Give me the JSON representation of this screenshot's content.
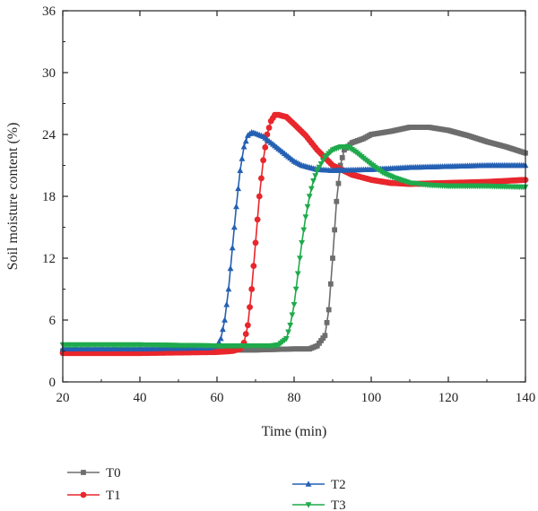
{
  "chart_data": {
    "type": "line",
    "title": "",
    "xlabel": "Time (min)",
    "ylabel": "Soil moisture content (%)",
    "xlim": [
      20,
      140
    ],
    "ylim": [
      0,
      36
    ],
    "xticks": [
      20,
      40,
      60,
      80,
      100,
      120,
      140
    ],
    "yticks": [
      0,
      6,
      12,
      18,
      24,
      30,
      36
    ],
    "grid": false,
    "legend_position": "bottom",
    "series": [
      {
        "name": "T0",
        "color": "#6d6d6d",
        "marker": "square",
        "x": [
          20,
          40,
          60,
          70,
          80,
          84,
          86,
          88,
          89,
          90,
          91,
          92,
          93,
          95,
          98,
          100,
          105,
          110,
          115,
          120,
          125,
          130,
          135,
          140
        ],
        "y": [
          3.0,
          3.0,
          3.1,
          3.1,
          3.2,
          3.2,
          3.5,
          4.5,
          7.0,
          12.0,
          17.5,
          21.0,
          22.5,
          23.2,
          23.6,
          24.0,
          24.3,
          24.7,
          24.7,
          24.4,
          23.9,
          23.3,
          22.8,
          22.2
        ]
      },
      {
        "name": "T1",
        "color": "#e8262c",
        "marker": "circle",
        "x": [
          20,
          40,
          60,
          64,
          66,
          67,
          68,
          69,
          70,
          71,
          72,
          73,
          74,
          75,
          76,
          78,
          80,
          83,
          86,
          90,
          95,
          100,
          105,
          110,
          120,
          130,
          140
        ],
        "y": [
          2.8,
          2.8,
          2.9,
          3.0,
          3.2,
          3.8,
          5.5,
          9.0,
          13.5,
          18.0,
          21.5,
          24.0,
          25.3,
          25.9,
          25.9,
          25.7,
          25.0,
          23.9,
          22.5,
          21.0,
          20.1,
          19.6,
          19.3,
          19.2,
          19.3,
          19.4,
          19.6
        ]
      },
      {
        "name": "T2",
        "color": "#2460b3",
        "marker": "triangle-up",
        "x": [
          20,
          40,
          58,
          60,
          61,
          62,
          63,
          64,
          65,
          66,
          67,
          68,
          69,
          70,
          72,
          74,
          76,
          78,
          80,
          82,
          84,
          86,
          90,
          100,
          110,
          120,
          130,
          140
        ],
        "y": [
          3.2,
          3.2,
          3.3,
          3.5,
          4.2,
          6.0,
          9.0,
          13.0,
          17.0,
          20.5,
          22.8,
          23.9,
          24.2,
          24.1,
          23.8,
          23.2,
          22.6,
          22.0,
          21.4,
          21.0,
          20.8,
          20.6,
          20.5,
          20.6,
          20.8,
          20.9,
          21.0,
          21.0
        ]
      },
      {
        "name": "T3",
        "color": "#1faa4c",
        "marker": "triangle-down",
        "x": [
          20,
          40,
          60,
          74,
          76,
          78,
          79,
          80,
          81,
          82,
          83,
          84,
          85,
          86,
          88,
          90,
          92,
          94,
          96,
          98,
          100,
          103,
          106,
          110,
          115,
          120,
          130,
          140
        ],
        "y": [
          3.6,
          3.6,
          3.5,
          3.5,
          3.6,
          4.2,
          5.5,
          7.5,
          10.5,
          13.5,
          16.0,
          18.0,
          19.5,
          20.5,
          21.8,
          22.5,
          22.8,
          22.8,
          22.3,
          21.7,
          21.1,
          20.3,
          19.8,
          19.3,
          19.1,
          19.0,
          19.0,
          18.9
        ]
      }
    ]
  }
}
